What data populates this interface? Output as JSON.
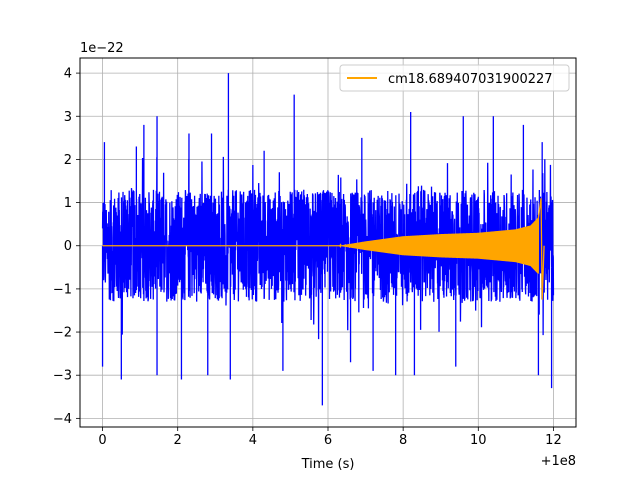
{
  "chart_data": {
    "type": "line",
    "title": "",
    "xlabel": "Time (s)",
    "ylabel": "",
    "x_offset_label": "+1e8",
    "y_scale_label": "1e−22",
    "xlim": [
      -0.6,
      12.6
    ],
    "ylim": [
      -4.2,
      4.35
    ],
    "x_ticks": [
      0,
      2,
      4,
      6,
      8,
      10,
      12
    ],
    "x_tick_labels": [
      "0",
      "2",
      "4",
      "6",
      "8",
      "10",
      "12"
    ],
    "y_ticks": [
      -4,
      -3,
      -2,
      -1,
      0,
      1,
      2,
      3,
      4
    ],
    "y_tick_labels": [
      "−4",
      "−3",
      "−2",
      "−1",
      "0",
      "1",
      "2",
      "3",
      "4"
    ],
    "grid": true,
    "legend_position": "top-right",
    "series": [
      {
        "name": "",
        "color": "#0000ff",
        "kind": "noise",
        "x_range": [
          0,
          12
        ],
        "core_amplitude": 1.3,
        "upper_peaks": [
          {
            "x": 0.05,
            "y": 2.4
          },
          {
            "x": 0.9,
            "y": 2.3
          },
          {
            "x": 1.1,
            "y": 2.8
          },
          {
            "x": 1.45,
            "y": 3.0
          },
          {
            "x": 2.3,
            "y": 2.6
          },
          {
            "x": 2.9,
            "y": 2.6
          },
          {
            "x": 3.35,
            "y": 4.0
          },
          {
            "x": 4.3,
            "y": 2.2
          },
          {
            "x": 5.1,
            "y": 3.5
          },
          {
            "x": 6.9,
            "y": 2.5
          },
          {
            "x": 8.2,
            "y": 3.1
          },
          {
            "x": 9.6,
            "y": 3.0
          },
          {
            "x": 10.4,
            "y": 3.0
          },
          {
            "x": 11.2,
            "y": 2.8
          },
          {
            "x": 11.7,
            "y": 2.4
          }
        ],
        "lower_peaks": [
          {
            "x": 0.0,
            "y": -2.8
          },
          {
            "x": 0.5,
            "y": -3.1
          },
          {
            "x": 1.45,
            "y": -3.0
          },
          {
            "x": 2.1,
            "y": -3.1
          },
          {
            "x": 2.8,
            "y": -3.0
          },
          {
            "x": 3.4,
            "y": -3.1
          },
          {
            "x": 4.8,
            "y": -2.9
          },
          {
            "x": 5.85,
            "y": -3.7
          },
          {
            "x": 6.6,
            "y": -2.7
          },
          {
            "x": 7.2,
            "y": -2.9
          },
          {
            "x": 7.8,
            "y": -3.0
          },
          {
            "x": 8.3,
            "y": -3.0
          },
          {
            "x": 9.4,
            "y": -2.8
          },
          {
            "x": 11.6,
            "y": -3.0
          },
          {
            "x": 11.95,
            "y": -3.3
          }
        ]
      },
      {
        "name": "cm18.689407031900227",
        "color": "#ffa500",
        "kind": "chirp_envelope",
        "envelope": [
          {
            "x": 0.0,
            "y": 0.0
          },
          {
            "x": 6.3,
            "y": 0.0
          },
          {
            "x": 7.0,
            "y": 0.1
          },
          {
            "x": 7.5,
            "y": 0.16
          },
          {
            "x": 8.0,
            "y": 0.22
          },
          {
            "x": 9.0,
            "y": 0.27
          },
          {
            "x": 10.0,
            "y": 0.3
          },
          {
            "x": 11.0,
            "y": 0.38
          },
          {
            "x": 11.4,
            "y": 0.47
          },
          {
            "x": 11.6,
            "y": 0.65
          },
          {
            "x": 11.67,
            "y": 1.1
          },
          {
            "x": 11.7,
            "y": -1.25
          },
          {
            "x": 11.75,
            "y": 0.0
          }
        ]
      }
    ]
  }
}
